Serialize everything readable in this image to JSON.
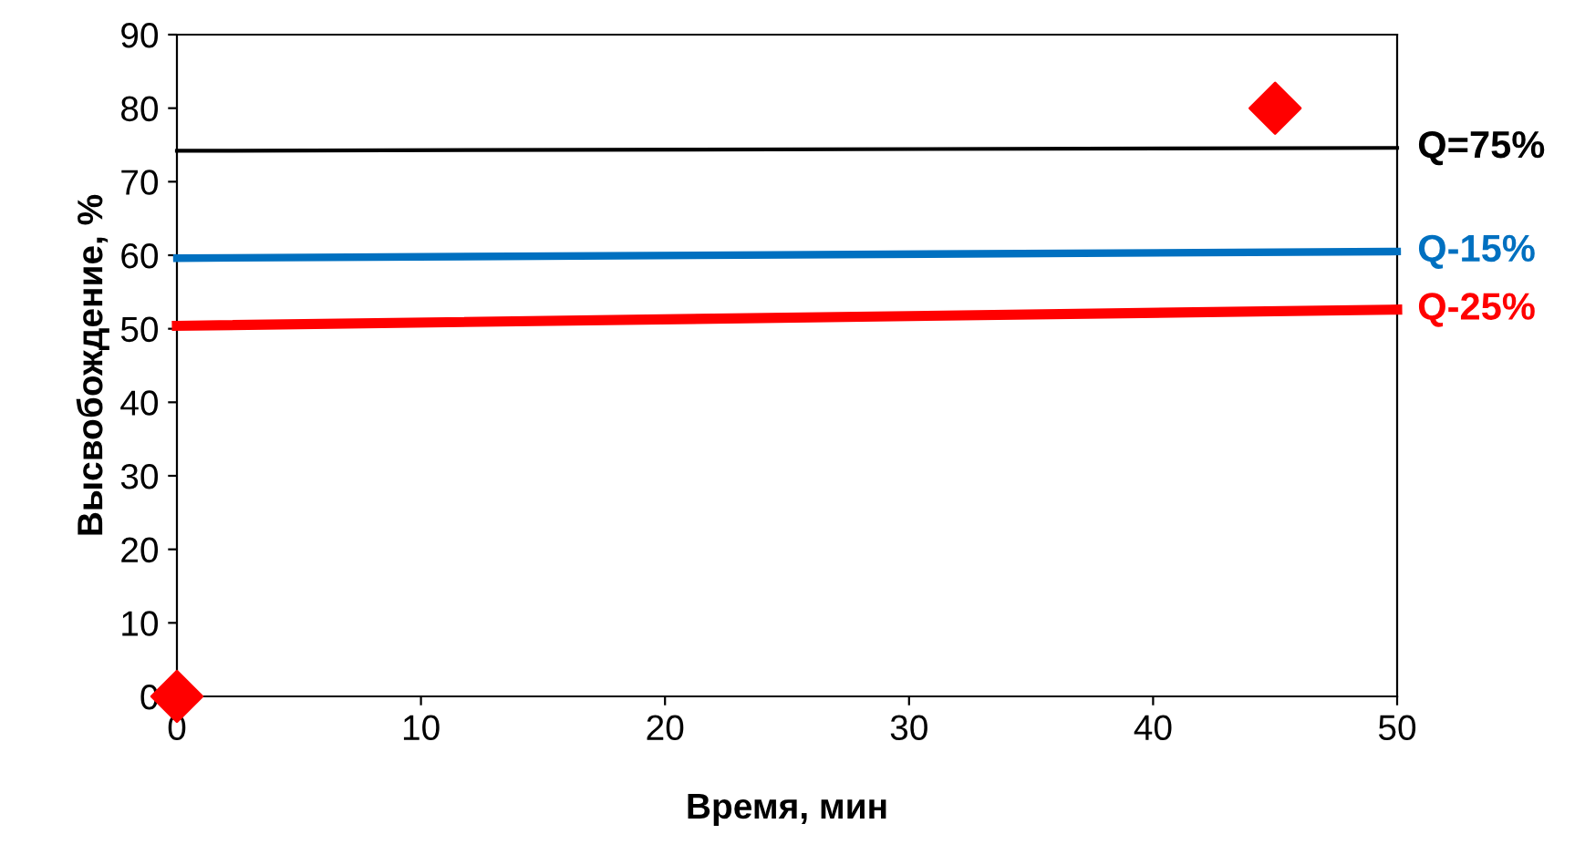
{
  "chart_data": {
    "type": "line",
    "xlabel": "Время, мин",
    "ylabel": "Высвобождение, %",
    "xlim": [
      0,
      50
    ],
    "ylim": [
      0,
      90
    ],
    "xticks": [
      0,
      10,
      20,
      30,
      40,
      50
    ],
    "yticks": [
      0,
      10,
      20,
      30,
      40,
      50,
      60,
      70,
      80,
      90
    ],
    "grid": false,
    "legend": false,
    "marker": "none",
    "line_style": "solid",
    "series": [
      {
        "type": "scatter",
        "marker": "diamond",
        "color": "#ff0000",
        "x": [
          0,
          45
        ],
        "values": [
          0,
          80
        ]
      },
      {
        "name": "Q=75%",
        "color": "#000000",
        "x": [
          0,
          50
        ],
        "values": [
          74.2,
          74.6
        ]
      },
      {
        "name": "Q-15%",
        "color": "#0070c0",
        "x": [
          0,
          50
        ],
        "values": [
          59.6,
          60.5
        ]
      },
      {
        "name": "Q-25%",
        "color": "#ff0000",
        "x": [
          0,
          50
        ],
        "values": [
          50.4,
          52.6
        ]
      }
    ]
  }
}
